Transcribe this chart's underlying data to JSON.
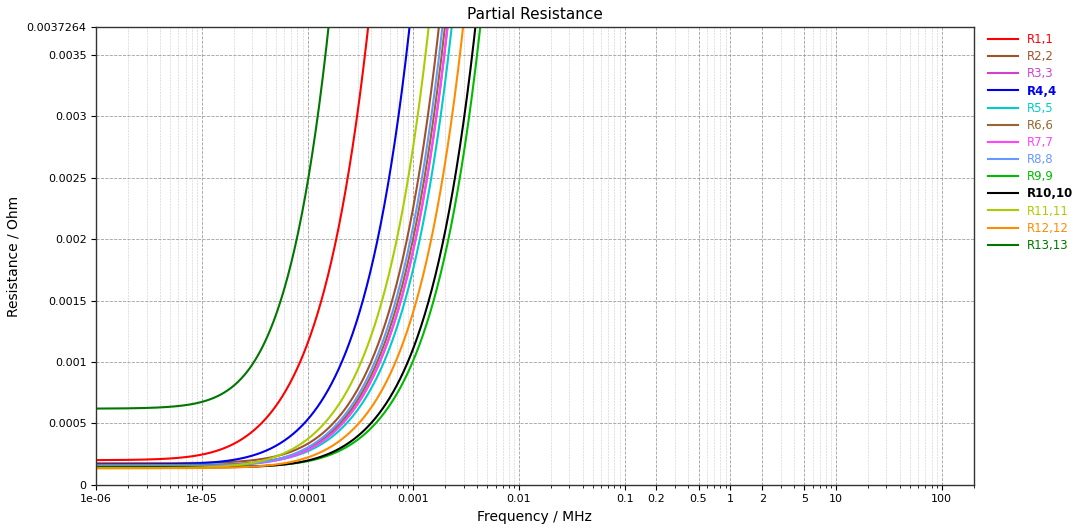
{
  "title": "Partial Resistance",
  "xlabel": "Frequency / MHz",
  "ylabel": "Resistance / Ohm",
  "xmin": 1e-06,
  "xmax": 200,
  "ymin": 0,
  "ymax": 0.0037264,
  "background_color": "#FFFFFF",
  "grid_color": "#888888",
  "series": [
    {
      "name": "R1,1",
      "color": "#FF0000",
      "R0": 0.0002,
      "alpha": 1.8e-05,
      "fc": 0.003,
      "exp": 0.9
    },
    {
      "name": "R2,2",
      "color": "#A0522D",
      "R0": 0.000175,
      "alpha": 4.5e-06,
      "fc": 0.003,
      "exp": 0.9
    },
    {
      "name": "R3,3",
      "color": "#CC44CC",
      "R0": 0.00016,
      "alpha": 3.8e-06,
      "fc": 0.004,
      "exp": 0.9
    },
    {
      "name": "R4,4",
      "color": "#0000EE",
      "R0": 0.000165,
      "alpha": 8e-06,
      "fc": 0.003,
      "exp": 0.9
    },
    {
      "name": "R5,5",
      "color": "#00CCCC",
      "R0": 0.00016,
      "alpha": 3.5e-06,
      "fc": 0.005,
      "exp": 0.9
    },
    {
      "name": "R6,6",
      "color": "#996633",
      "R0": 0.000155,
      "alpha": 4e-06,
      "fc": 0.005,
      "exp": 0.9
    },
    {
      "name": "R7,7",
      "color": "#FF44FF",
      "R0": 0.00015,
      "alpha": 3.8e-06,
      "fc": 0.005,
      "exp": 0.9
    },
    {
      "name": "R8,8",
      "color": "#6699FF",
      "R0": 0.000148,
      "alpha": 4.2e-06,
      "fc": 0.005,
      "exp": 0.9
    },
    {
      "name": "R9,9",
      "color": "#00BB00",
      "R0": 0.000145,
      "alpha": 2e-06,
      "fc": 0.008,
      "exp": 0.9
    },
    {
      "name": "R10,10",
      "color": "#000000",
      "R0": 0.00014,
      "alpha": 2.2e-06,
      "fc": 0.006,
      "exp": 0.9
    },
    {
      "name": "R11,11",
      "color": "#AACC00",
      "R0": 0.000135,
      "alpha": 5.5e-06,
      "fc": 0.004,
      "exp": 0.9
    },
    {
      "name": "R12,12",
      "color": "#FF8C00",
      "R0": 0.000135,
      "alpha": 2.8e-06,
      "fc": 0.007,
      "exp": 0.9
    },
    {
      "name": "R13,13",
      "color": "#007700",
      "R0": 0.00062,
      "alpha": 3e-05,
      "fc": 0.001,
      "exp": 0.95
    }
  ],
  "ytick_vals": [
    0,
    0.0005,
    0.001,
    0.0015,
    0.002,
    0.0025,
    0.003,
    0.0035,
    0.0037264
  ],
  "ytick_labels": [
    "0",
    "0.0005",
    "0.001",
    "0.0015",
    "0.002",
    "0.0025",
    "0.003",
    "0.0035",
    "0.0037264"
  ],
  "xtick_positions": [
    1e-06,
    1e-05,
    0.0001,
    0.001,
    0.01,
    0.1,
    0.2,
    0.5,
    1,
    2,
    5,
    10,
    100
  ],
  "xtick_labels": [
    "1e-06",
    "1e-05",
    "0.0001",
    "0.001",
    "0.01",
    "0.1",
    "0.2",
    "0.5",
    "1",
    "2",
    "5",
    "10",
    "100"
  ]
}
